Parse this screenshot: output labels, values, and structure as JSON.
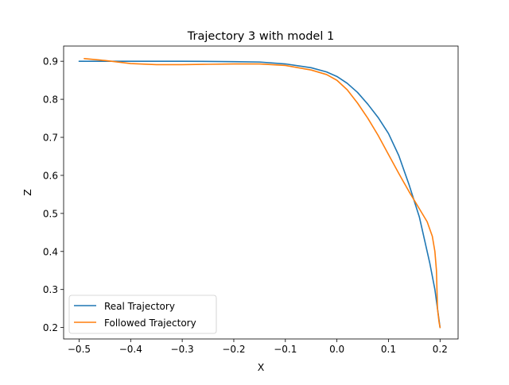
{
  "chart_data": {
    "type": "line",
    "title": "Trajectory 3 with model 1",
    "xlabel": "X",
    "ylabel": "Z",
    "xlim": [
      -0.53,
      0.235
    ],
    "ylim": [
      0.17,
      0.94
    ],
    "xticks": [
      -0.5,
      -0.4,
      -0.3,
      -0.2,
      -0.1,
      0.0,
      0.1,
      0.2
    ],
    "xtick_labels": [
      "−0.5",
      "−0.4",
      "−0.3",
      "−0.2",
      "−0.1",
      "0.0",
      "0.1",
      "0.2"
    ],
    "yticks": [
      0.2,
      0.3,
      0.4,
      0.5,
      0.6,
      0.7,
      0.8,
      0.9
    ],
    "ytick_labels": [
      "0.2",
      "0.3",
      "0.4",
      "0.5",
      "0.6",
      "0.7",
      "0.8",
      "0.9"
    ],
    "grid": false,
    "legend_position": "lower-left",
    "series": [
      {
        "name": "Real Trajectory",
        "color": "#1f77b4",
        "points": [
          [
            -0.5,
            0.9
          ],
          [
            -0.4,
            0.9
          ],
          [
            -0.3,
            0.9
          ],
          [
            -0.2,
            0.899
          ],
          [
            -0.15,
            0.898
          ],
          [
            -0.1,
            0.893
          ],
          [
            -0.05,
            0.883
          ],
          [
            -0.02,
            0.872
          ],
          [
            0.0,
            0.86
          ],
          [
            0.02,
            0.842
          ],
          [
            0.04,
            0.818
          ],
          [
            0.06,
            0.787
          ],
          [
            0.08,
            0.752
          ],
          [
            0.1,
            0.71
          ],
          [
            0.12,
            0.652
          ],
          [
            0.14,
            0.575
          ],
          [
            0.16,
            0.49
          ],
          [
            0.17,
            0.43
          ],
          [
            0.18,
            0.37
          ],
          [
            0.19,
            0.3
          ],
          [
            0.195,
            0.25
          ],
          [
            0.2,
            0.2
          ]
        ]
      },
      {
        "name": "Followed Trajectory",
        "color": "#ff7f0e",
        "points": [
          [
            -0.49,
            0.907
          ],
          [
            -0.45,
            0.902
          ],
          [
            -0.4,
            0.894
          ],
          [
            -0.35,
            0.891
          ],
          [
            -0.3,
            0.891
          ],
          [
            -0.25,
            0.892
          ],
          [
            -0.2,
            0.893
          ],
          [
            -0.15,
            0.893
          ],
          [
            -0.1,
            0.889
          ],
          [
            -0.05,
            0.877
          ],
          [
            -0.02,
            0.865
          ],
          [
            0.0,
            0.85
          ],
          [
            0.02,
            0.825
          ],
          [
            0.04,
            0.79
          ],
          [
            0.06,
            0.75
          ],
          [
            0.08,
            0.705
          ],
          [
            0.1,
            0.655
          ],
          [
            0.12,
            0.605
          ],
          [
            0.14,
            0.557
          ],
          [
            0.16,
            0.512
          ],
          [
            0.175,
            0.478
          ],
          [
            0.185,
            0.44
          ],
          [
            0.19,
            0.4
          ],
          [
            0.193,
            0.35
          ],
          [
            0.194,
            0.3
          ],
          [
            0.195,
            0.25
          ],
          [
            0.198,
            0.215
          ],
          [
            0.2,
            0.2
          ]
        ]
      }
    ]
  }
}
